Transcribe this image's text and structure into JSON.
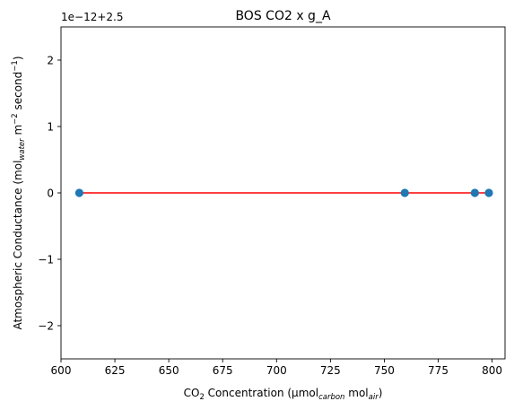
{
  "chart_data": {
    "type": "scatter",
    "title": "BOS CO2 x g_A",
    "xlabel": {
      "main": "CO",
      "main_sub": "2",
      "rest": " Concentration (µmol",
      "rest_sub": "carbon",
      "mid": " mol",
      "end_sub": "air",
      "close": ")"
    },
    "ylabel": {
      "pre": "Atmospheric Conductance (mol",
      "sub": "water",
      "mid": " m",
      "sup1": "−2",
      "mid2": " second",
      "sup2": "−1",
      "close": ")"
    },
    "y_offset_text": "1e−12+2.5",
    "xlim": [
      600,
      806
    ],
    "ylim": [
      -2.5,
      2.5
    ],
    "x_ticks": [
      600,
      625,
      650,
      675,
      700,
      725,
      750,
      775,
      800
    ],
    "y_ticks": [
      -2,
      -1,
      0,
      1,
      2
    ],
    "y_tick_labels": [
      "−2",
      "−1",
      "0",
      "1",
      "2"
    ],
    "points": [
      {
        "x": 608.5,
        "y": 0
      },
      {
        "x": 759.5,
        "y": 0
      },
      {
        "x": 792.0,
        "y": 0
      },
      {
        "x": 798.5,
        "y": 0
      }
    ],
    "fit_line": {
      "x": [
        608.5,
        798.5
      ],
      "y": [
        0,
        0
      ],
      "color": "#ff0000"
    },
    "marker_color": "#1f77b4",
    "grid": false
  }
}
